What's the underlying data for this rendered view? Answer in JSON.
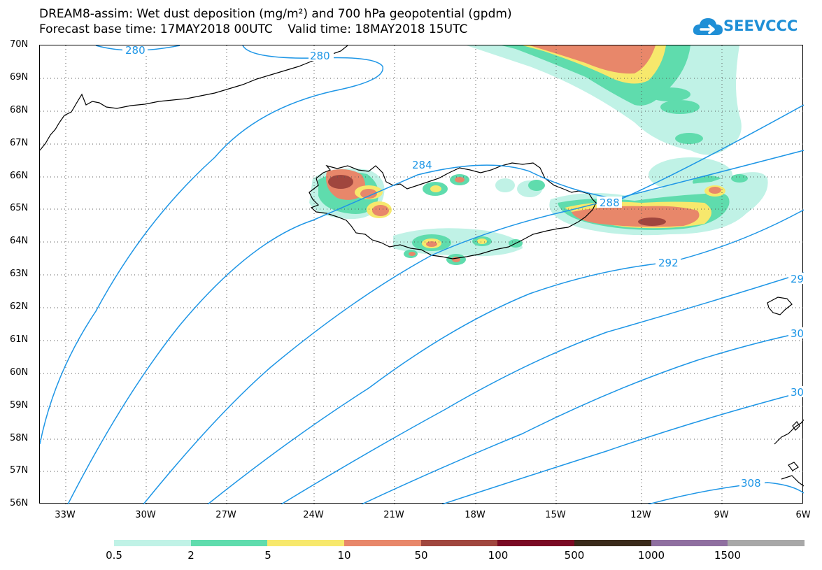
{
  "header": {
    "title_line1": "DREAM8-assim: Wet dust deposition (mg/m²) and 700 hPa geopotential (gpdm)",
    "title_line2": "Forecast base time: 17MAY2018 00UTC    Valid time: 18MAY2018 15UTC"
  },
  "logo": {
    "text": "SEEVCCC",
    "icon": "cloud-arrow-icon",
    "color": "#1f8fd6"
  },
  "map": {
    "projection": "lat-lon",
    "lon_range": [
      -34.5,
      -6
    ],
    "lat_range": [
      56,
      70
    ],
    "lat_labels": [
      "70N",
      "69N",
      "68N",
      "67N",
      "66N",
      "65N",
      "64N",
      "63N",
      "62N",
      "61N",
      "60N",
      "59N",
      "58N",
      "57N",
      "56N"
    ],
    "lon_labels": [
      "33W",
      "30W",
      "27W",
      "24W",
      "21W",
      "18W",
      "15W",
      "12W",
      "9W",
      "6W"
    ],
    "gridlines": "dotted",
    "contour_color": "#1e96e6",
    "contour_labels": [
      {
        "text": "280"
      },
      {
        "text": "280"
      },
      {
        "text": "284"
      },
      {
        "text": "288"
      },
      {
        "text": "292"
      },
      {
        "text": "29"
      },
      {
        "text": "30"
      },
      {
        "text": "30"
      },
      {
        "text": "308"
      }
    ]
  },
  "legend": {
    "colors": [
      "#c0f2e6",
      "#5fdcad",
      "#f7e86c",
      "#e8876a",
      "#a0463e",
      "#7a0a24",
      "#3a2a1a",
      "#8f6fa0",
      "#a8a8a8"
    ],
    "labels": [
      "0.5",
      "2",
      "5",
      "10",
      "50",
      "100",
      "500",
      "1000",
      "1500"
    ]
  }
}
